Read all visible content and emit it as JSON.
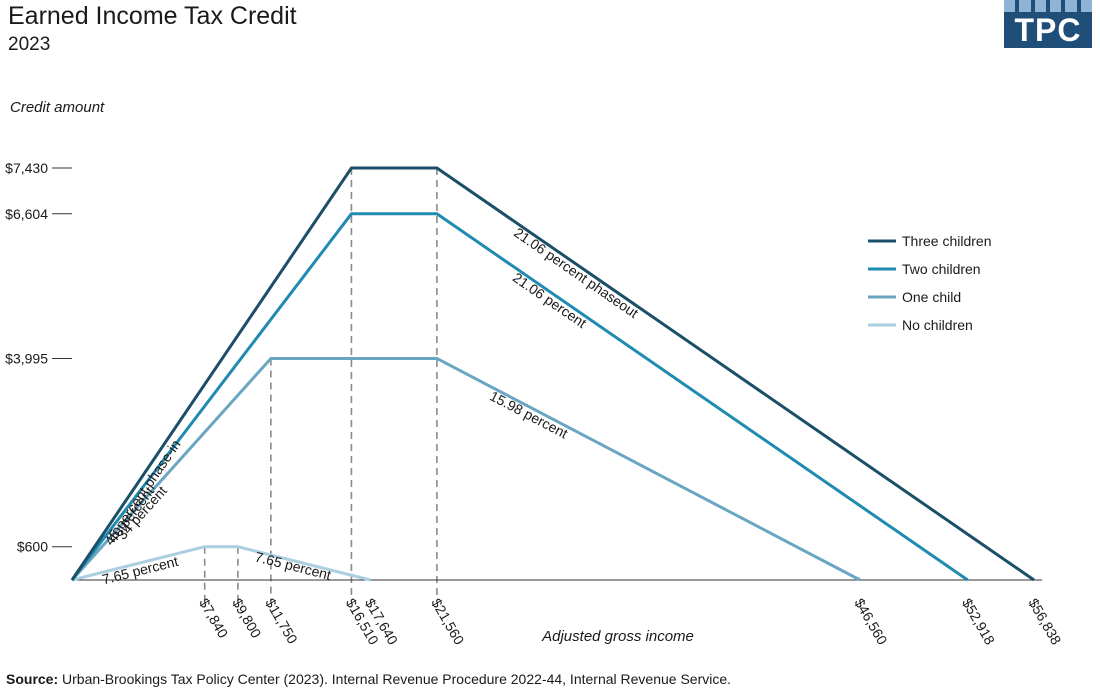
{
  "header": {
    "title": "Earned Income Tax Credit",
    "subtitle": "2023",
    "logo_text": "TPC"
  },
  "colors": {
    "three": "#1b4f68",
    "two": "#1f8bb0",
    "one": "#6aa6c2",
    "none": "#a9cfe0",
    "guide": "#8a8a8a",
    "axis": "#333333",
    "logo": "#1f4e79"
  },
  "chart_data": {
    "type": "line",
    "title": "Earned Income Tax Credit",
    "subtitle": "2023",
    "xlabel": "Adjusted gross income",
    "ylabel": "Credit amount",
    "xlim": [
      0,
      57000
    ],
    "ylim": [
      0,
      7430
    ],
    "y_ticks": [
      {
        "value": 600,
        "label": "$600"
      },
      {
        "value": 3995,
        "label": "$3,995"
      },
      {
        "value": 6604,
        "label": "$6,604"
      },
      {
        "value": 7430,
        "label": "$7,430"
      }
    ],
    "x_ticks": [
      {
        "value": 7840,
        "label": "$7,840"
      },
      {
        "value": 9800,
        "label": "$9,800"
      },
      {
        "value": 11750,
        "label": "$11,750"
      },
      {
        "value": 16510,
        "label": "$16,510"
      },
      {
        "value": 17640,
        "label": "$17,640"
      },
      {
        "value": 21560,
        "label": "$21,560"
      },
      {
        "value": 46560,
        "label": "$46,560"
      },
      {
        "value": 52918,
        "label": "$52,918"
      },
      {
        "value": 56838,
        "label": "$56,838"
      }
    ],
    "guides": [
      {
        "x": 7840,
        "y": 600
      },
      {
        "x": 9800,
        "y": 600
      },
      {
        "x": 11750,
        "y": 3995
      },
      {
        "x": 16510,
        "y": 7430
      },
      {
        "x": 21560,
        "y": 7430
      }
    ],
    "series": [
      {
        "key": "three",
        "name": "Three children",
        "points": [
          [
            0,
            0
          ],
          [
            16510,
            7430
          ],
          [
            21560,
            7430
          ],
          [
            56838,
            0
          ]
        ]
      },
      {
        "key": "two",
        "name": "Two children",
        "points": [
          [
            0,
            0
          ],
          [
            16510,
            6604
          ],
          [
            21560,
            6604
          ],
          [
            52918,
            0
          ]
        ]
      },
      {
        "key": "one",
        "name": "One child",
        "points": [
          [
            0,
            0
          ],
          [
            11750,
            3995
          ],
          [
            21560,
            3995
          ],
          [
            46560,
            0
          ]
        ]
      },
      {
        "key": "none",
        "name": "No children",
        "points": [
          [
            0,
            0
          ],
          [
            7840,
            600
          ],
          [
            9800,
            600
          ],
          [
            17640,
            0
          ]
        ]
      }
    ],
    "annotations": [
      {
        "text": "45 percent phase-in",
        "series": "three",
        "seg": 0
      },
      {
        "text": "40 percent",
        "series": "two",
        "seg": 0
      },
      {
        "text": "34 percent",
        "series": "one",
        "seg": 0
      },
      {
        "text": "7.65 percent",
        "series": "none",
        "seg": 0
      },
      {
        "text": "7.65 percent",
        "series": "none",
        "seg": 2
      },
      {
        "text": "21.06 percent phaseout",
        "series": "three",
        "seg": 2
      },
      {
        "text": "21.06 percent",
        "series": "two",
        "seg": 2
      },
      {
        "text": "15.98 percent",
        "series": "one",
        "seg": 2
      }
    ],
    "legend_position": "right"
  },
  "footer": {
    "source_label": "Source:",
    "source_text": "Urban-Brookings Tax Policy Center (2023). Internal Revenue Procedure 2022-44, Internal Revenue Service."
  }
}
